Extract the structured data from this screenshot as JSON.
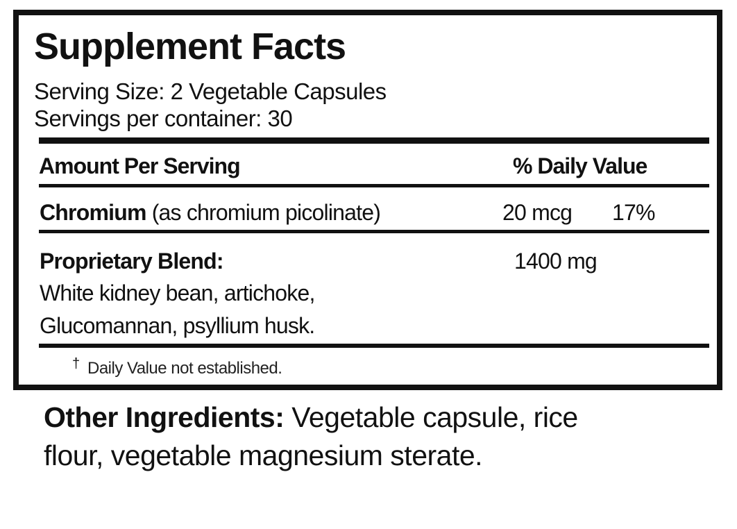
{
  "label": {
    "title": "Supplement Facts",
    "serving_size": "Serving Size: 2 Vegetable Capsules",
    "servings_per_container": "Servings per container: 30",
    "header": {
      "amount": "Amount Per Serving",
      "daily_value": "% Daily Value"
    },
    "rows": [
      {
        "name": "Chromium",
        "detail": "(as chromium picolinate)",
        "amount": "20 mcg",
        "dv": "17%"
      },
      {
        "name": "Proprietary Blend:",
        "detail_lines": [
          "White kidney bean, artichoke,",
          "Glucomannan, psyllium husk."
        ],
        "amount": "1400 mg"
      }
    ],
    "footnote_symbol": "†",
    "footnote": "Daily Value not established."
  },
  "other_ingredients": {
    "label": "Other Ingredients:",
    "line1": "Vegetable capsule, rice",
    "line2": "flour, vegetable magnesium sterate."
  }
}
